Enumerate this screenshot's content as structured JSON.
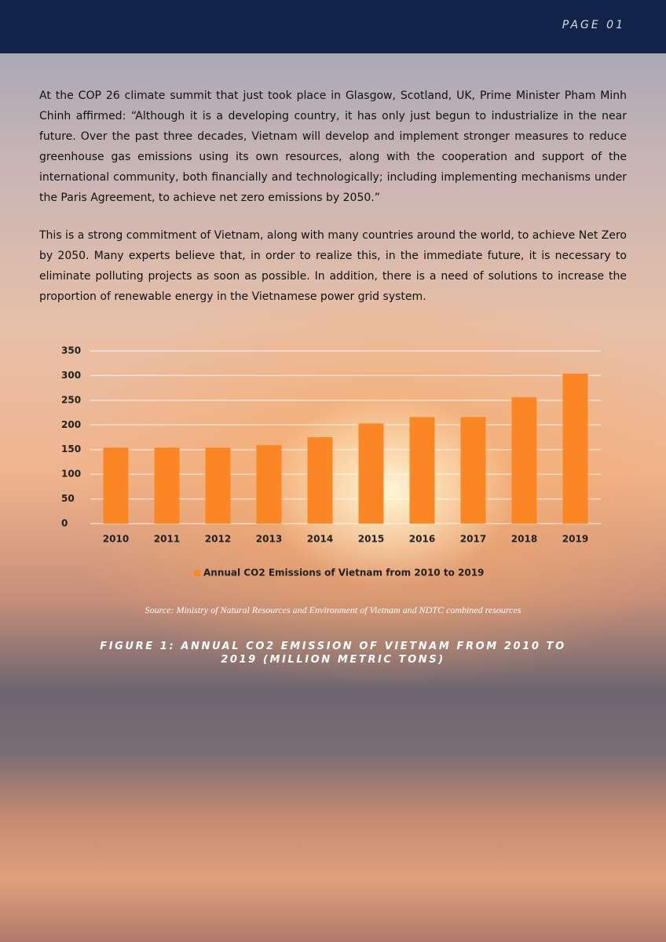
{
  "header": {
    "page": "PAGE 01"
  },
  "paragraphs": [
    "At the COP 26 climate summit that just took place in Glasgow, Scotland, UK, Prime Minister Pham Minh Chinh affirmed: “Although it is a developing country, it has only just begun to industrialize in the near future. Over the past three decades, Vietnam will develop and implement stronger measures to reduce greenhouse gas emissions using its own resources, along with the cooperation and support of the international community, both financially and technologically; including implementing mechanisms under the Paris Agreement, to achieve net zero emissions by 2050.”",
    "This is a strong commitment of Vietnam, along with many countries around the world, to achieve Net Zero by 2050. Many experts believe that, in order to realize this, in the immediate future, it is necessary to eliminate polluting projects as soon as possible. In addition, there is a need of solutions to increase the proportion of renewable energy in the Vietnamese power grid system."
  ],
  "chart_data": {
    "type": "bar",
    "categories": [
      "2010",
      "2011",
      "2012",
      "2013",
      "2014",
      "2015",
      "2016",
      "2017",
      "2018",
      "2019"
    ],
    "series": [
      {
        "name": "Annual CO2 Emissions of Vietnam from 2010 to 2019",
        "color": "#fb8724",
        "values": [
          154,
          154,
          154,
          159,
          175,
          203,
          216,
          216,
          256,
          304
        ]
      }
    ],
    "ylim": [
      0,
      350
    ],
    "yticks": [
      0,
      50,
      100,
      150,
      200,
      250,
      300,
      350
    ],
    "grid": true
  },
  "source": "Source: Ministry of Natural Resources and Environment of Vietnam and NDTC combined resources",
  "caption": "FIGURE 1: ANNUAL CO2 EMISSION OF VIETNAM FROM 2010 TO 2019 (MILLION METRIC TONS)"
}
